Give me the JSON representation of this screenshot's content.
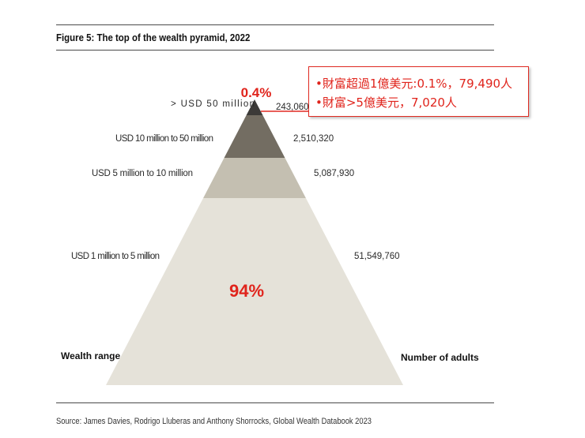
{
  "figure": {
    "title": "Figure 5: The top of the wealth pyramid, 2022",
    "source": "Source: James Davies, Rodrigo Lluberas and Anthony Shorrocks, Global Wealth Databook 2023"
  },
  "annotations": {
    "top_percent": "0.4%",
    "bottom_percent": "94%",
    "note_lines": [
      "•財富超過1億美元:0.1%，79,490人",
      "•財富>5億美元，7,020人"
    ]
  },
  "chart_data": {
    "type": "pyramid",
    "title": "Figure 5: The top of the wealth pyramid, 2022",
    "left_axis_label": "Wealth range",
    "right_axis_label": "Number of adults",
    "tiers": [
      {
        "range": "> USD 50 million",
        "adults": 243060,
        "adults_label": "243,060",
        "color": "#3c3a38"
      },
      {
        "range": "USD  10 million to 50 million",
        "adults": 2510320,
        "adults_label": "2,510,320",
        "color": "#736d62"
      },
      {
        "range": "USD 5 million to 10 million",
        "adults": 5087930,
        "adults_label": "5,087,930",
        "color": "#c4bfb1"
      },
      {
        "range": "USD 1 million to 5 million",
        "adults": 51549760,
        "adults_label": "51,549,760",
        "color": "#e5e2d9"
      }
    ]
  }
}
